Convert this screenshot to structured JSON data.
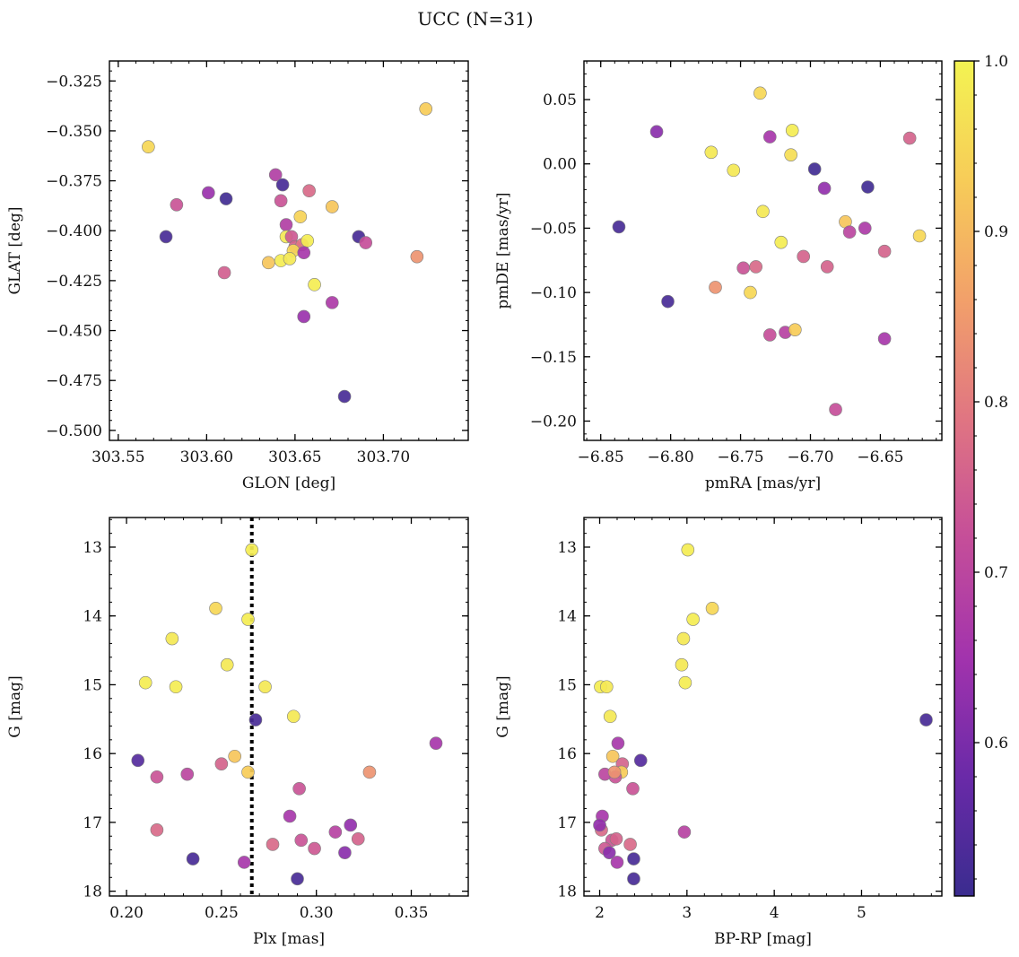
{
  "figure": {
    "title": "UCC (N=31)",
    "colormap": "plasma",
    "colorbar_range": [
      0.51,
      1.0
    ],
    "colorbar_ticks": [
      {
        "value": 0.6,
        "label": "0.6"
      },
      {
        "value": 0.7,
        "label": "0.7"
      },
      {
        "value": 0.8,
        "label": "0.8"
      },
      {
        "value": 0.9,
        "label": "0.9"
      },
      {
        "value": 1.0,
        "label": "1.0"
      }
    ],
    "colorbar_minor_step": 0.02,
    "colorbar_stops": [
      "#3a2c8f",
      "#6a2aa8",
      "#a233ad",
      "#c54e99",
      "#e07582",
      "#f2a06a",
      "#f7cc58",
      "#f3f352"
    ],
    "marker_edge": "#7f7f7f"
  },
  "chart_data": [
    {
      "type": "scatter",
      "name": "glon-glat",
      "title": "",
      "xlabel": "GLON [deg]",
      "ylabel": "GLAT [deg]",
      "xlim": [
        303.545,
        303.748
      ],
      "ylim": [
        -0.505,
        -0.315
      ],
      "y_inverted": false,
      "xticks": [
        {
          "value": 303.55,
          "label": "303.55"
        },
        {
          "value": 303.6,
          "label": "303.60"
        },
        {
          "value": 303.65,
          "label": "303.65"
        },
        {
          "value": 303.7,
          "label": "303.70"
        }
      ],
      "yticks": [
        {
          "value": -0.325,
          "label": "−0.325"
        },
        {
          "value": -0.35,
          "label": "−0.350"
        },
        {
          "value": -0.375,
          "label": "−0.375"
        },
        {
          "value": -0.4,
          "label": "−0.400"
        },
        {
          "value": -0.425,
          "label": "−0.425"
        },
        {
          "value": -0.45,
          "label": "−0.450"
        },
        {
          "value": -0.475,
          "label": "−0.475"
        },
        {
          "value": -0.5,
          "label": "−0.500"
        }
      ],
      "x_minor_step": 0.01,
      "y_minor_step": 0.005,
      "points": [
        {
          "x": 303.567,
          "y": -0.358,
          "c": 0.95
        },
        {
          "x": 303.724,
          "y": -0.339,
          "c": 0.93
        },
        {
          "x": 303.577,
          "y": -0.403,
          "c": 0.53
        },
        {
          "x": 303.583,
          "y": -0.387,
          "c": 0.73
        },
        {
          "x": 303.601,
          "y": -0.381,
          "c": 0.64
        },
        {
          "x": 303.611,
          "y": -0.384,
          "c": 0.52
        },
        {
          "x": 303.61,
          "y": -0.421,
          "c": 0.75
        },
        {
          "x": 303.639,
          "y": -0.372,
          "c": 0.68
        },
        {
          "x": 303.643,
          "y": -0.377,
          "c": 0.53
        },
        {
          "x": 303.642,
          "y": -0.385,
          "c": 0.73
        },
        {
          "x": 303.658,
          "y": -0.38,
          "c": 0.77
        },
        {
          "x": 303.671,
          "y": -0.388,
          "c": 0.92
        },
        {
          "x": 303.645,
          "y": -0.397,
          "c": 0.68
        },
        {
          "x": 303.653,
          "y": -0.393,
          "c": 0.94
        },
        {
          "x": 303.645,
          "y": -0.403,
          "c": 0.98
        },
        {
          "x": 303.648,
          "y": -0.403,
          "c": 0.74
        },
        {
          "x": 303.65,
          "y": -0.408,
          "c": 0.76
        },
        {
          "x": 303.654,
          "y": -0.407,
          "c": 0.79
        },
        {
          "x": 303.657,
          "y": -0.405,
          "c": 0.99
        },
        {
          "x": 303.649,
          "y": -0.41,
          "c": 0.95
        },
        {
          "x": 303.655,
          "y": -0.411,
          "c": 0.66
        },
        {
          "x": 303.635,
          "y": -0.416,
          "c": 0.92
        },
        {
          "x": 303.642,
          "y": -0.415,
          "c": 0.99
        },
        {
          "x": 303.647,
          "y": -0.414,
          "c": 0.98
        },
        {
          "x": 303.686,
          "y": -0.403,
          "c": 0.53
        },
        {
          "x": 303.69,
          "y": -0.406,
          "c": 0.72
        },
        {
          "x": 303.719,
          "y": -0.413,
          "c": 0.84
        },
        {
          "x": 303.661,
          "y": -0.427,
          "c": 0.99
        },
        {
          "x": 303.671,
          "y": -0.436,
          "c": 0.67
        },
        {
          "x": 303.655,
          "y": -0.443,
          "c": 0.64
        },
        {
          "x": 303.678,
          "y": -0.483,
          "c": 0.53
        }
      ]
    },
    {
      "type": "scatter",
      "name": "pmra-pmde",
      "title": "",
      "xlabel": "pmRA [mas/yr]",
      "ylabel": "pmDE [mas/yr]",
      "xlim": [
        -6.862,
        -6.606
      ],
      "ylim": [
        -0.215,
        0.08
      ],
      "y_inverted": false,
      "xticks": [
        {
          "value": -6.85,
          "label": "−6.85"
        },
        {
          "value": -6.8,
          "label": "−6.80"
        },
        {
          "value": -6.75,
          "label": "−6.75"
        },
        {
          "value": -6.7,
          "label": "−6.70"
        },
        {
          "value": -6.65,
          "label": "−6.65"
        }
      ],
      "yticks": [
        {
          "value": 0.05,
          "label": "0.05"
        },
        {
          "value": 0.0,
          "label": "0.00"
        },
        {
          "value": -0.05,
          "label": "−0.05"
        },
        {
          "value": -0.1,
          "label": "−0.10"
        },
        {
          "value": -0.15,
          "label": "−0.15"
        },
        {
          "value": -0.2,
          "label": "−0.20"
        }
      ],
      "x_minor_step": 0.01,
      "y_minor_step": 0.01,
      "points": [
        {
          "x": -6.837,
          "y": -0.049,
          "c": 0.53
        },
        {
          "x": -6.81,
          "y": 0.025,
          "c": 0.62
        },
        {
          "x": -6.802,
          "y": -0.107,
          "c": 0.53
        },
        {
          "x": -6.736,
          "y": 0.055,
          "c": 0.95
        },
        {
          "x": -6.771,
          "y": 0.009,
          "c": 0.98
        },
        {
          "x": -6.755,
          "y": -0.005,
          "c": 0.98
        },
        {
          "x": -6.713,
          "y": 0.026,
          "c": 0.99
        },
        {
          "x": -6.714,
          "y": 0.007,
          "c": 0.96
        },
        {
          "x": -6.729,
          "y": 0.021,
          "c": 0.66
        },
        {
          "x": -6.697,
          "y": -0.004,
          "c": 0.52
        },
        {
          "x": -6.69,
          "y": -0.019,
          "c": 0.63
        },
        {
          "x": -6.659,
          "y": -0.018,
          "c": 0.52
        },
        {
          "x": -6.629,
          "y": 0.02,
          "c": 0.76
        },
        {
          "x": -6.734,
          "y": -0.037,
          "c": 0.98
        },
        {
          "x": -6.675,
          "y": -0.045,
          "c": 0.92
        },
        {
          "x": -6.672,
          "y": -0.053,
          "c": 0.7
        },
        {
          "x": -6.661,
          "y": -0.05,
          "c": 0.67
        },
        {
          "x": -6.622,
          "y": -0.056,
          "c": 0.95
        },
        {
          "x": -6.721,
          "y": -0.061,
          "c": 0.99
        },
        {
          "x": -6.647,
          "y": -0.068,
          "c": 0.76
        },
        {
          "x": -6.705,
          "y": -0.072,
          "c": 0.76
        },
        {
          "x": -6.748,
          "y": -0.081,
          "c": 0.73
        },
        {
          "x": -6.739,
          "y": -0.08,
          "c": 0.77
        },
        {
          "x": -6.688,
          "y": -0.08,
          "c": 0.76
        },
        {
          "x": -6.768,
          "y": -0.096,
          "c": 0.84
        },
        {
          "x": -6.743,
          "y": -0.1,
          "c": 0.95
        },
        {
          "x": -6.729,
          "y": -0.133,
          "c": 0.72
        },
        {
          "x": -6.718,
          "y": -0.131,
          "c": 0.69
        },
        {
          "x": -6.711,
          "y": -0.129,
          "c": 0.93
        },
        {
          "x": -6.647,
          "y": -0.136,
          "c": 0.66
        },
        {
          "x": -6.682,
          "y": -0.191,
          "c": 0.72
        }
      ]
    },
    {
      "type": "scatter",
      "name": "plx-g",
      "title": "",
      "xlabel": "Plx [mas]",
      "ylabel": "G [mag]",
      "xlim": [
        0.191,
        0.38
      ],
      "ylim": [
        12.57,
        18.07
      ],
      "y_inverted": true,
      "xticks": [
        {
          "value": 0.2,
          "label": "0.20"
        },
        {
          "value": 0.25,
          "label": "0.25"
        },
        {
          "value": 0.3,
          "label": "0.30"
        },
        {
          "value": 0.35,
          "label": "0.35"
        }
      ],
      "yticks": [
        {
          "value": 13,
          "label": "13"
        },
        {
          "value": 14,
          "label": "14"
        },
        {
          "value": 15,
          "label": "15"
        },
        {
          "value": 16,
          "label": "16"
        },
        {
          "value": 17,
          "label": "17"
        },
        {
          "value": 18,
          "label": "18"
        }
      ],
      "x_minor_step": 0.01,
      "y_minor_step": 0.2,
      "vline": {
        "x": 0.266,
        "style": "dotted",
        "color": "#000000"
      },
      "points": [
        {
          "x": 0.266,
          "y": 13.04,
          "c": 0.99
        },
        {
          "x": 0.247,
          "y": 13.89,
          "c": 0.95
        },
        {
          "x": 0.264,
          "y": 14.05,
          "c": 0.99
        },
        {
          "x": 0.224,
          "y": 14.33,
          "c": 0.98
        },
        {
          "x": 0.253,
          "y": 14.71,
          "c": 0.98
        },
        {
          "x": 0.21,
          "y": 14.97,
          "c": 0.99
        },
        {
          "x": 0.226,
          "y": 15.03,
          "c": 0.99
        },
        {
          "x": 0.273,
          "y": 15.03,
          "c": 0.98
        },
        {
          "x": 0.268,
          "y": 15.51,
          "c": 0.53
        },
        {
          "x": 0.288,
          "y": 15.46,
          "c": 0.98
        },
        {
          "x": 0.363,
          "y": 15.85,
          "c": 0.66
        },
        {
          "x": 0.206,
          "y": 16.1,
          "c": 0.55
        },
        {
          "x": 0.257,
          "y": 16.04,
          "c": 0.92
        },
        {
          "x": 0.25,
          "y": 16.15,
          "c": 0.76
        },
        {
          "x": 0.264,
          "y": 16.27,
          "c": 0.93
        },
        {
          "x": 0.216,
          "y": 16.34,
          "c": 0.73
        },
        {
          "x": 0.232,
          "y": 16.3,
          "c": 0.7
        },
        {
          "x": 0.328,
          "y": 16.27,
          "c": 0.84
        },
        {
          "x": 0.291,
          "y": 16.51,
          "c": 0.73
        },
        {
          "x": 0.216,
          "y": 17.11,
          "c": 0.77
        },
        {
          "x": 0.286,
          "y": 16.91,
          "c": 0.66
        },
        {
          "x": 0.318,
          "y": 17.04,
          "c": 0.63
        },
        {
          "x": 0.31,
          "y": 17.14,
          "c": 0.69
        },
        {
          "x": 0.292,
          "y": 17.26,
          "c": 0.73
        },
        {
          "x": 0.322,
          "y": 17.24,
          "c": 0.76
        },
        {
          "x": 0.277,
          "y": 17.32,
          "c": 0.77
        },
        {
          "x": 0.299,
          "y": 17.38,
          "c": 0.74
        },
        {
          "x": 0.315,
          "y": 17.44,
          "c": 0.62
        },
        {
          "x": 0.235,
          "y": 17.53,
          "c": 0.53
        },
        {
          "x": 0.262,
          "y": 17.58,
          "c": 0.66
        },
        {
          "x": 0.29,
          "y": 17.82,
          "c": 0.53
        }
      ]
    },
    {
      "type": "scatter",
      "name": "bprp-g",
      "title": "",
      "xlabel": "BP-RP [mag]",
      "ylabel": "G [mag]",
      "xlim": [
        1.82,
        5.92
      ],
      "ylim": [
        12.57,
        18.07
      ],
      "y_inverted": true,
      "xticks": [
        {
          "value": 2,
          "label": "2"
        },
        {
          "value": 3,
          "label": "3"
        },
        {
          "value": 4,
          "label": "4"
        },
        {
          "value": 5,
          "label": "5"
        }
      ],
      "yticks": [
        {
          "value": 13,
          "label": "13"
        },
        {
          "value": 14,
          "label": "14"
        },
        {
          "value": 15,
          "label": "15"
        },
        {
          "value": 16,
          "label": "16"
        },
        {
          "value": 17,
          "label": "17"
        },
        {
          "value": 18,
          "label": "18"
        }
      ],
      "x_minor_step": 0.2,
      "y_minor_step": 0.2,
      "points": [
        {
          "x": 3.01,
          "y": 13.04,
          "c": 0.99
        },
        {
          "x": 3.29,
          "y": 13.89,
          "c": 0.95
        },
        {
          "x": 3.07,
          "y": 14.05,
          "c": 0.99
        },
        {
          "x": 2.96,
          "y": 14.33,
          "c": 0.98
        },
        {
          "x": 2.94,
          "y": 14.71,
          "c": 0.98
        },
        {
          "x": 2.98,
          "y": 14.97,
          "c": 0.99
        },
        {
          "x": 2.01,
          "y": 15.03,
          "c": 0.99
        },
        {
          "x": 2.08,
          "y": 15.03,
          "c": 0.98
        },
        {
          "x": 5.74,
          "y": 15.51,
          "c": 0.53
        },
        {
          "x": 2.12,
          "y": 15.46,
          "c": 0.98
        },
        {
          "x": 2.21,
          "y": 15.85,
          "c": 0.66
        },
        {
          "x": 2.47,
          "y": 16.1,
          "c": 0.55
        },
        {
          "x": 2.15,
          "y": 16.04,
          "c": 0.92
        },
        {
          "x": 2.26,
          "y": 16.15,
          "c": 0.76
        },
        {
          "x": 2.25,
          "y": 16.27,
          "c": 0.93
        },
        {
          "x": 2.18,
          "y": 16.34,
          "c": 0.73
        },
        {
          "x": 2.06,
          "y": 16.3,
          "c": 0.7
        },
        {
          "x": 2.17,
          "y": 16.27,
          "c": 0.84
        },
        {
          "x": 2.38,
          "y": 16.51,
          "c": 0.73
        },
        {
          "x": 2.02,
          "y": 17.11,
          "c": 0.77
        },
        {
          "x": 2.03,
          "y": 16.91,
          "c": 0.66
        },
        {
          "x": 2.0,
          "y": 17.04,
          "c": 0.63
        },
        {
          "x": 2.97,
          "y": 17.14,
          "c": 0.69
        },
        {
          "x": 2.14,
          "y": 17.26,
          "c": 0.73
        },
        {
          "x": 2.19,
          "y": 17.24,
          "c": 0.76
        },
        {
          "x": 2.35,
          "y": 17.32,
          "c": 0.77
        },
        {
          "x": 2.06,
          "y": 17.38,
          "c": 0.74
        },
        {
          "x": 2.11,
          "y": 17.44,
          "c": 0.62
        },
        {
          "x": 2.39,
          "y": 17.53,
          "c": 0.53
        },
        {
          "x": 2.2,
          "y": 17.58,
          "c": 0.66
        },
        {
          "x": 2.39,
          "y": 17.82,
          "c": 0.53
        }
      ]
    }
  ]
}
